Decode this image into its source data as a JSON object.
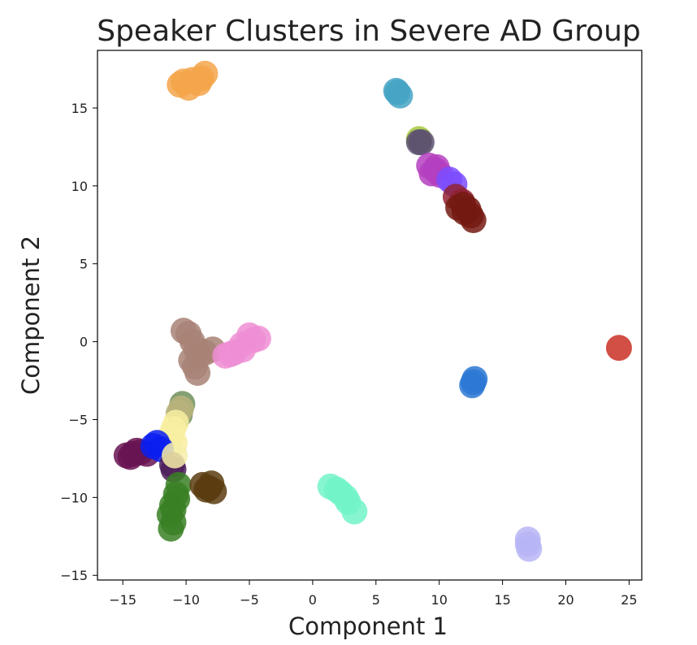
{
  "chart_data": {
    "type": "scatter",
    "title": "Speaker Clusters in Severe AD Group",
    "xlabel": "Component 1",
    "ylabel": "Component 2",
    "xlim": [
      -17,
      26
    ],
    "ylim": [
      -15.3,
      18.7
    ],
    "xticks": [
      -15,
      -10,
      -5,
      0,
      5,
      10,
      15,
      20,
      25
    ],
    "yticks": [
      -15,
      -10,
      -5,
      0,
      5,
      10,
      15
    ],
    "grid": false,
    "legend": "none",
    "series": [
      {
        "color": "#f5a54a",
        "points": [
          [
            -10.5,
            16.5
          ],
          [
            -9.8,
            16.3
          ],
          [
            -9.0,
            16.6
          ],
          [
            -8.5,
            17.2
          ],
          [
            -9.5,
            16.8
          ],
          [
            -8.8,
            16.9
          ],
          [
            -10.2,
            16.7
          ]
        ]
      },
      {
        "color": "#45a5c4",
        "points": [
          [
            6.6,
            16.1
          ],
          [
            6.9,
            15.8
          ],
          [
            6.7,
            16.0
          ]
        ]
      },
      {
        "color": "#a4c93b",
        "points": [
          [
            8.4,
            13.0
          ]
        ]
      },
      {
        "color": "#5d5170",
        "points": [
          [
            8.4,
            12.8
          ],
          [
            8.6,
            12.8
          ]
        ]
      },
      {
        "color": "#b43fbf",
        "points": [
          [
            9.2,
            11.3
          ],
          [
            9.7,
            11.0
          ],
          [
            9.4,
            10.8
          ],
          [
            10.1,
            10.7
          ],
          [
            9.8,
            11.2
          ]
        ]
      },
      {
        "color": "#7b4cff",
        "points": [
          [
            10.8,
            10.4
          ],
          [
            11.2,
            10.1
          ]
        ]
      },
      {
        "color": "#912231",
        "points": [
          [
            11.3,
            9.3
          ],
          [
            11.8,
            9.0
          ]
        ]
      },
      {
        "color": "#741a12",
        "points": [
          [
            11.5,
            8.6
          ],
          [
            12.0,
            8.3
          ],
          [
            12.5,
            8.1
          ],
          [
            11.9,
            8.8
          ],
          [
            12.7,
            7.8
          ],
          [
            12.3,
            8.5
          ]
        ]
      },
      {
        "color": "#c93024",
        "points": [
          [
            24.2,
            -0.4
          ]
        ]
      },
      {
        "color": "#2c78d4",
        "points": [
          [
            12.7,
            -2.6
          ],
          [
            12.8,
            -2.4
          ],
          [
            12.6,
            -2.8
          ]
        ]
      },
      {
        "color": "#a88276",
        "points": [
          [
            -10.2,
            0.7
          ],
          [
            -9.8,
            0.5
          ],
          [
            -9.5,
            0.0
          ],
          [
            -9.2,
            -0.5
          ],
          [
            -9.6,
            -1.2
          ],
          [
            -9.3,
            -1.6
          ],
          [
            -9.1,
            -2.0
          ],
          [
            -9.0,
            -0.9
          ],
          [
            -8.5,
            -0.7
          ],
          [
            -7.9,
            -0.5
          ]
        ]
      },
      {
        "color": "#ee8ed5",
        "points": [
          [
            -6.9,
            -0.9
          ],
          [
            -6.2,
            -0.7
          ],
          [
            -5.5,
            -0.5
          ],
          [
            -5.0,
            0.4
          ],
          [
            -4.7,
            0.1
          ],
          [
            -4.3,
            0.2
          ],
          [
            -5.6,
            -0.2
          ],
          [
            -6.5,
            -0.8
          ]
        ]
      },
      {
        "color": "#6f8f5a",
        "points": [
          [
            -10.3,
            -4.0
          ],
          [
            -10.5,
            -4.7
          ]
        ]
      },
      {
        "color": "#b9b37d",
        "points": [
          [
            -10.4,
            -4.3
          ],
          [
            -10.6,
            -4.6
          ]
        ]
      },
      {
        "color": "#f8eea1",
        "points": [
          [
            -10.8,
            -5.2
          ],
          [
            -11.0,
            -5.6
          ],
          [
            -11.2,
            -6.0
          ],
          [
            -10.9,
            -6.5
          ]
        ]
      },
      {
        "color": "#681452",
        "points": [
          [
            -14.7,
            -7.3
          ],
          [
            -14.2,
            -7.2
          ],
          [
            -13.6,
            -7.1
          ],
          [
            -13.1,
            -7.2
          ],
          [
            -14.4,
            -7.4
          ],
          [
            -13.9,
            -7.0
          ]
        ]
      },
      {
        "color": "#0a1ef0",
        "points": [
          [
            -12.6,
            -6.7
          ],
          [
            -12.3,
            -6.5
          ],
          [
            -12.0,
            -6.9
          ]
        ]
      },
      {
        "color": "#4e1e5a",
        "points": [
          [
            -11.1,
            -7.9
          ],
          [
            -11.0,
            -8.2
          ]
        ]
      },
      {
        "color": "#f6efa8",
        "points": [
          [
            -10.9,
            -7.3
          ]
        ]
      },
      {
        "color": "#3a8024",
        "points": [
          [
            -10.6,
            -9.2
          ],
          [
            -10.8,
            -9.8
          ],
          [
            -11.1,
            -10.5
          ],
          [
            -11.3,
            -11.1
          ],
          [
            -11.0,
            -11.6
          ],
          [
            -11.2,
            -12.0
          ],
          [
            -10.7,
            -10.1
          ],
          [
            -11.0,
            -10.8
          ]
        ]
      },
      {
        "color": "#5a3c10",
        "points": [
          [
            -8.7,
            -9.2
          ],
          [
            -8.2,
            -9.4
          ],
          [
            -7.8,
            -9.6
          ],
          [
            -8.0,
            -9.1
          ],
          [
            -8.4,
            -9.5
          ]
        ]
      },
      {
        "color": "#72f3c8",
        "points": [
          [
            1.4,
            -9.3
          ],
          [
            2.2,
            -9.7
          ],
          [
            2.8,
            -10.3
          ],
          [
            3.3,
            -10.9
          ],
          [
            1.9,
            -9.5
          ],
          [
            2.6,
            -10.0
          ]
        ]
      },
      {
        "color": "#b7b5f5",
        "points": [
          [
            17.0,
            -12.7
          ],
          [
            17.1,
            -13.3
          ],
          [
            17.0,
            -13.0
          ]
        ]
      }
    ]
  }
}
